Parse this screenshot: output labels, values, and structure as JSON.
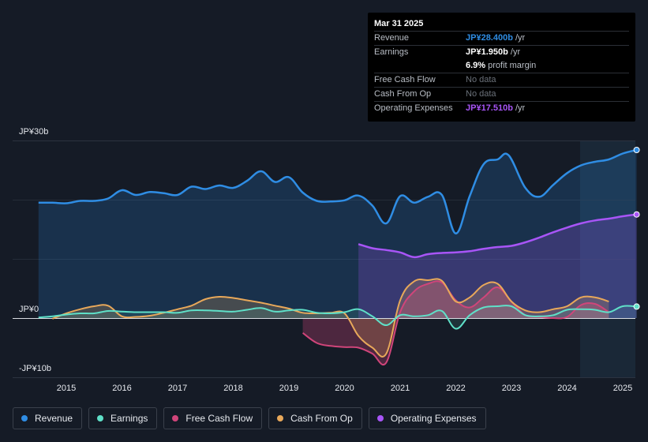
{
  "tooltip": {
    "date": "Mar 31 2025",
    "rows": [
      {
        "label": "Revenue",
        "value": "JP¥28.400b",
        "unit": " /yr",
        "color": "#2f8de4"
      },
      {
        "label": "Earnings",
        "value": "JP¥1.950b",
        "unit": " /yr",
        "color": "#ffffff"
      },
      {
        "label": "",
        "value": "6.9%",
        "unit": " profit margin",
        "color": "#ffffff"
      },
      {
        "label": "Free Cash Flow",
        "value": "No data",
        "unit": "",
        "color": "#6b717a"
      },
      {
        "label": "Cash From Op",
        "value": "No data",
        "unit": "",
        "color": "#6b717a"
      },
      {
        "label": "Operating Expenses",
        "value": "JP¥17.510b",
        "unit": " /yr",
        "color": "#a855f7"
      }
    ]
  },
  "legend": [
    {
      "label": "Revenue",
      "color": "#2f8de4"
    },
    {
      "label": "Earnings",
      "color": "#5fe0c8"
    },
    {
      "label": "Free Cash Flow",
      "color": "#d0457a"
    },
    {
      "label": "Cash From Op",
      "color": "#e8a85a"
    },
    {
      "label": "Operating Expenses",
      "color": "#a855f7"
    }
  ],
  "chart_data": {
    "type": "area",
    "title": "",
    "xlabel": "",
    "ylabel": "",
    "y_axis_labels": [
      "JP¥30b",
      "JP¥0",
      "-JP¥10b"
    ],
    "ylim": [
      -10,
      30
    ],
    "xlim": [
      2014.5,
      2025.25
    ],
    "x_ticks": [
      2015,
      2016,
      2017,
      2018,
      2019,
      2020,
      2021,
      2022,
      2023,
      2024,
      2025
    ],
    "forecast_region_start": 2024.25,
    "series": [
      {
        "name": "Revenue",
        "color": "#2f8de4",
        "points": [
          [
            2014.5,
            19.5
          ],
          [
            2014.75,
            19.5
          ],
          [
            2015.0,
            19.4
          ],
          [
            2015.25,
            19.8
          ],
          [
            2015.5,
            19.8
          ],
          [
            2015.75,
            20.2
          ],
          [
            2016.0,
            21.6
          ],
          [
            2016.25,
            20.8
          ],
          [
            2016.5,
            21.3
          ],
          [
            2016.75,
            21.1
          ],
          [
            2017.0,
            20.8
          ],
          [
            2017.25,
            22.2
          ],
          [
            2017.5,
            21.8
          ],
          [
            2017.75,
            22.4
          ],
          [
            2018.0,
            22.0
          ],
          [
            2018.25,
            23.2
          ],
          [
            2018.5,
            24.8
          ],
          [
            2018.75,
            23.0
          ],
          [
            2019.0,
            23.8
          ],
          [
            2019.25,
            21.2
          ],
          [
            2019.5,
            19.8
          ],
          [
            2019.75,
            19.7
          ],
          [
            2020.0,
            19.9
          ],
          [
            2020.25,
            20.7
          ],
          [
            2020.5,
            19.0
          ],
          [
            2020.75,
            16.0
          ],
          [
            2021.0,
            20.6
          ],
          [
            2021.25,
            19.5
          ],
          [
            2021.5,
            20.5
          ],
          [
            2021.75,
            20.8
          ],
          [
            2022.0,
            14.3
          ],
          [
            2022.25,
            20.6
          ],
          [
            2022.5,
            26.0
          ],
          [
            2022.75,
            26.8
          ],
          [
            2022.95,
            27.5
          ],
          [
            2023.25,
            22.0
          ],
          [
            2023.5,
            20.5
          ],
          [
            2023.75,
            22.5
          ],
          [
            2024.0,
            24.5
          ],
          [
            2024.25,
            25.8
          ],
          [
            2024.5,
            26.4
          ],
          [
            2024.75,
            26.8
          ],
          [
            2025.0,
            27.8
          ],
          [
            2025.25,
            28.4
          ]
        ]
      },
      {
        "name": "Earnings",
        "color": "#5fe0c8",
        "points": [
          [
            2014.5,
            0.1
          ],
          [
            2014.75,
            0.3
          ],
          [
            2015.0,
            0.6
          ],
          [
            2015.25,
            0.8
          ],
          [
            2015.5,
            0.8
          ],
          [
            2015.75,
            1.2
          ],
          [
            2016.0,
            1.1
          ],
          [
            2016.25,
            1.0
          ],
          [
            2016.5,
            1.0
          ],
          [
            2016.75,
            1.0
          ],
          [
            2017.0,
            0.9
          ],
          [
            2017.25,
            1.3
          ],
          [
            2017.5,
            1.3
          ],
          [
            2017.75,
            1.2
          ],
          [
            2018.0,
            1.1
          ],
          [
            2018.25,
            1.4
          ],
          [
            2018.5,
            1.7
          ],
          [
            2018.75,
            1.1
          ],
          [
            2019.0,
            1.3
          ],
          [
            2019.25,
            1.4
          ],
          [
            2019.5,
            0.9
          ],
          [
            2019.75,
            0.8
          ],
          [
            2020.0,
            1.0
          ],
          [
            2020.25,
            1.5
          ],
          [
            2020.5,
            0.3
          ],
          [
            2020.75,
            -1.2
          ],
          [
            2021.0,
            0.5
          ],
          [
            2021.25,
            0.3
          ],
          [
            2021.5,
            0.5
          ],
          [
            2021.75,
            1.2
          ],
          [
            2022.0,
            -1.8
          ],
          [
            2022.25,
            0.5
          ],
          [
            2022.5,
            1.8
          ],
          [
            2022.75,
            2.0
          ],
          [
            2023.0,
            2.0
          ],
          [
            2023.25,
            0.5
          ],
          [
            2023.5,
            0.3
          ],
          [
            2023.75,
            0.5
          ],
          [
            2024.0,
            1.4
          ],
          [
            2024.25,
            1.5
          ],
          [
            2024.5,
            1.4
          ],
          [
            2024.75,
            1.0
          ],
          [
            2025.0,
            2.0
          ],
          [
            2025.25,
            1.95
          ]
        ]
      },
      {
        "name": "Free Cash Flow",
        "color": "#d0457a",
        "points": [
          [
            2019.25,
            -2.5
          ],
          [
            2019.5,
            -4.2
          ],
          [
            2019.75,
            -4.7
          ],
          [
            2020.0,
            -4.9
          ],
          [
            2020.25,
            -5.0
          ],
          [
            2020.5,
            -6.0
          ],
          [
            2020.75,
            -7.5
          ],
          [
            2021.0,
            1.0
          ],
          [
            2021.25,
            4.5
          ],
          [
            2021.5,
            5.8
          ],
          [
            2021.75,
            6.0
          ],
          [
            2022.0,
            3.0
          ],
          [
            2022.25,
            1.8
          ],
          [
            2022.5,
            3.5
          ],
          [
            2022.75,
            5.2
          ],
          [
            2023.0,
            2.8
          ],
          [
            2023.25,
            0.5
          ],
          [
            2023.5,
            0.2
          ],
          [
            2023.75,
            0.0
          ],
          [
            2024.0,
            0.2
          ],
          [
            2024.25,
            2.2
          ],
          [
            2024.5,
            2.4
          ],
          [
            2024.75,
            1.0
          ]
        ]
      },
      {
        "name": "Cash From Op",
        "color": "#e8a85a",
        "points": [
          [
            2014.75,
            -0.1
          ],
          [
            2015.0,
            0.8
          ],
          [
            2015.25,
            1.5
          ],
          [
            2015.5,
            2.0
          ],
          [
            2015.75,
            2.1
          ],
          [
            2016.0,
            0.3
          ],
          [
            2016.25,
            0.2
          ],
          [
            2016.5,
            0.4
          ],
          [
            2016.75,
            0.9
          ],
          [
            2017.0,
            1.5
          ],
          [
            2017.25,
            2.1
          ],
          [
            2017.5,
            3.2
          ],
          [
            2017.75,
            3.6
          ],
          [
            2018.0,
            3.4
          ],
          [
            2018.25,
            3.0
          ],
          [
            2018.5,
            2.6
          ],
          [
            2018.75,
            2.1
          ],
          [
            2019.0,
            1.6
          ],
          [
            2019.25,
            0.9
          ],
          [
            2019.5,
            0.8
          ],
          [
            2019.75,
            0.9
          ],
          [
            2020.0,
            0.8
          ],
          [
            2020.25,
            -3.0
          ],
          [
            2020.5,
            -5.0
          ],
          [
            2020.75,
            -6.0
          ],
          [
            2021.0,
            3.0
          ],
          [
            2021.25,
            6.2
          ],
          [
            2021.5,
            6.4
          ],
          [
            2021.75,
            6.3
          ],
          [
            2022.0,
            2.8
          ],
          [
            2022.25,
            3.5
          ],
          [
            2022.5,
            5.6
          ],
          [
            2022.75,
            5.8
          ],
          [
            2023.0,
            2.8
          ],
          [
            2023.25,
            1.3
          ],
          [
            2023.5,
            1.0
          ],
          [
            2023.75,
            1.5
          ],
          [
            2024.0,
            2.0
          ],
          [
            2024.25,
            3.5
          ],
          [
            2024.5,
            3.5
          ],
          [
            2024.75,
            2.8
          ]
        ]
      },
      {
        "name": "Operating Expenses",
        "color": "#a855f7",
        "points": [
          [
            2020.25,
            12.5
          ],
          [
            2020.5,
            11.8
          ],
          [
            2020.75,
            11.5
          ],
          [
            2021.0,
            11.1
          ],
          [
            2021.25,
            10.3
          ],
          [
            2021.5,
            10.8
          ],
          [
            2021.75,
            11.0
          ],
          [
            2022.0,
            11.1
          ],
          [
            2022.25,
            11.3
          ],
          [
            2022.5,
            11.7
          ],
          [
            2022.75,
            12.0
          ],
          [
            2023.0,
            12.2
          ],
          [
            2023.25,
            12.8
          ],
          [
            2023.5,
            13.6
          ],
          [
            2023.75,
            14.5
          ],
          [
            2024.0,
            15.3
          ],
          [
            2024.25,
            16.0
          ],
          [
            2024.5,
            16.5
          ],
          [
            2024.75,
            16.8
          ],
          [
            2025.0,
            17.2
          ],
          [
            2025.25,
            17.51
          ]
        ]
      }
    ]
  }
}
